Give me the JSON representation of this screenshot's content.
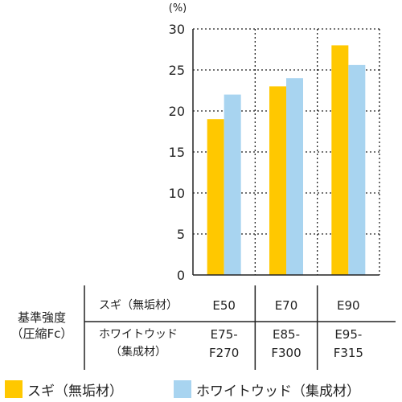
{
  "chart_data": {
    "type": "bar",
    "unit": "(%)",
    "categories": [
      "E50",
      "E70",
      "E90"
    ],
    "series": [
      {
        "name": "スギ（無垢材）",
        "values": [
          19,
          23,
          28
        ],
        "color": "#FFC800"
      },
      {
        "name": "ホワイトウッド（集成材）",
        "values": [
          22,
          24,
          25.6
        ],
        "color": "#A8D4F0"
      }
    ],
    "ylim": [
      0,
      30
    ],
    "yticks": [
      0,
      5,
      10,
      15,
      20,
      25,
      30
    ],
    "grid": true,
    "legend_position": "bottom"
  },
  "table": {
    "group_label_line1": "基準強度",
    "group_label_line2": "（圧縮Fc）",
    "row1_label": "スギ（無垢材）",
    "row2_label_line1": "ホワイトウッド",
    "row2_label_line2": "（集成材）",
    "row1_values": [
      "E50",
      "E70",
      "E90"
    ],
    "row2_values": [
      {
        "line1": "E75-",
        "line2": "F270"
      },
      {
        "line1": "E85-",
        "line2": "F300"
      },
      {
        "line1": "E95-",
        "line2": "F315"
      }
    ]
  },
  "legend": {
    "items": [
      {
        "label": "スギ（無垢材）",
        "color": "#FFC800"
      },
      {
        "label": "ホワイトウッド（集成材）",
        "color": "#A8D4F0"
      }
    ]
  }
}
